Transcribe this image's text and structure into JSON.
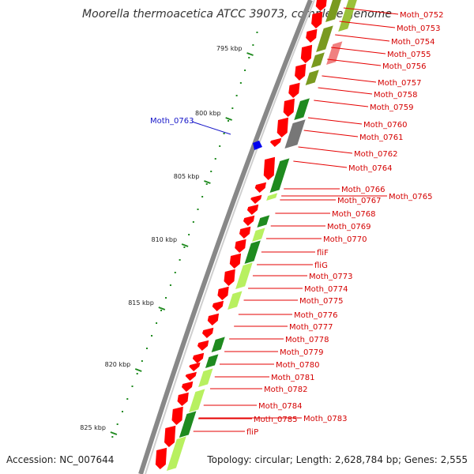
{
  "title": "Moorella thermoacetica ATCC 39073, complete genome",
  "accession": "Accession: NC_007644",
  "topology": "Topology: circular; Length: 2,628,784 bp; Genes: 2,555",
  "ticks": [
    "795 kbp",
    "800 kbp",
    "805 kbp",
    "810 kbp",
    "815 kbp",
    "820 kbp",
    "825 kbp"
  ],
  "highlight_gene": "Moth_0763",
  "gene_labels": [
    "Moth_0752",
    "Moth_0753",
    "Moth_0754",
    "Moth_0755",
    "Moth_0756",
    "Moth_0757",
    "Moth_0758",
    "Moth_0759",
    "Moth_0760",
    "Moth_0761",
    "Moth_0762",
    "Moth_0764",
    "Moth_0766",
    "Moth_0765",
    "Moth_0767",
    "Moth_0768",
    "Moth_0769",
    "Moth_0770",
    "fliF",
    "fliG",
    "Moth_0773",
    "Moth_0774",
    "Moth_0775",
    "Moth_0776",
    "Moth_0777",
    "Moth_0778",
    "Moth_0779",
    "Moth_0780",
    "Moth_0781",
    "Moth_0782",
    "Moth_0784",
    "Moth_0783",
    "Moth_0785",
    "fliP"
  ],
  "colors": {
    "forward_strand": "#ff0000",
    "reverse_strand": "#1f8a1f",
    "light_green": "#b8f060",
    "olive": "#7a9a20",
    "highlight": "#0000ee",
    "backbone": "#888888"
  }
}
